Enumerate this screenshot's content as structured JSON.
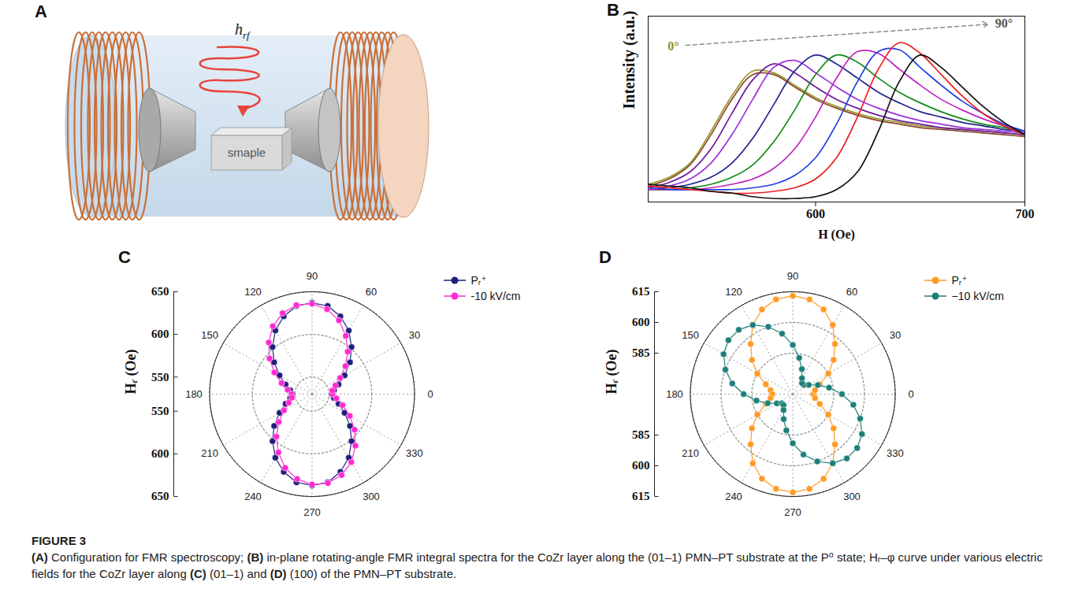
{
  "diagram": {
    "panel": "A",
    "field_label": {
      "base": "h",
      "subscript": "rf"
    },
    "sample_label": "smaple"
  },
  "chart_data": [
    {
      "panel": "B",
      "type": "line",
      "x_label": "H (Oe)",
      "y_label": "Intensity (a.u.)",
      "x": [
        520,
        530,
        540,
        550,
        560,
        570,
        580,
        590,
        600,
        610,
        620,
        630,
        640,
        650,
        660,
        670,
        680,
        690,
        700
      ],
      "xlim": [
        520,
        700
      ],
      "xticks": [
        600,
        700
      ],
      "ylim": [
        0,
        105
      ],
      "tick_labels": "x",
      "annotations": [
        {
          "text": "0°",
          "x": 532,
          "y": 88,
          "color": "#8f8f22"
        },
        {
          "text": "90°",
          "x": 690,
          "y": 101,
          "color": "#555555"
        }
      ],
      "series": [
        {
          "color": "#9a9a2e",
          "values": [
            10,
            14,
            22,
            40,
            60,
            74,
            73,
            66,
            59,
            54,
            50,
            47,
            45,
            43,
            42,
            41,
            40,
            39,
            38
          ]
        },
        {
          "color": "#8b4a2b",
          "values": [
            9,
            13,
            21,
            38,
            58,
            72,
            72,
            65,
            58,
            53,
            49,
            46,
            44,
            42,
            41,
            40,
            39,
            38,
            37
          ]
        },
        {
          "color": "#6a1b9a",
          "values": [
            8,
            11,
            17,
            30,
            50,
            69,
            78,
            73,
            65,
            58,
            53,
            49,
            46,
            44,
            42,
            41,
            40,
            39,
            38
          ]
        },
        {
          "color": "#9b30e0",
          "values": [
            7,
            9,
            13,
            22,
            38,
            58,
            76,
            80,
            73,
            65,
            58,
            53,
            49,
            46,
            44,
            42,
            41,
            40,
            39
          ]
        },
        {
          "color": "#23238f",
          "values": [
            7,
            8,
            10,
            14,
            22,
            36,
            55,
            74,
            83,
            78,
            70,
            62,
            56,
            51,
            48,
            45,
            43,
            41,
            40
          ]
        },
        {
          "color": "#138a13",
          "values": [
            7,
            7,
            8,
            10,
            14,
            21,
            34,
            52,
            72,
            83,
            79,
            70,
            62,
            56,
            51,
            47,
            44,
            42,
            40
          ]
        },
        {
          "color": "#c023c0",
          "values": [
            7,
            7,
            7,
            8,
            10,
            13,
            19,
            30,
            48,
            70,
            85,
            84,
            75,
            66,
            58,
            52,
            47,
            43,
            40
          ]
        },
        {
          "color": "#1f3fe0",
          "values": [
            8,
            7,
            7,
            7,
            7,
            8,
            10,
            15,
            25,
            44,
            68,
            85,
            86,
            76,
            66,
            57,
            50,
            44,
            40
          ]
        },
        {
          "color": "#ee1c1c",
          "values": [
            9,
            8,
            7,
            6,
            5,
            5,
            6,
            8,
            13,
            25,
            48,
            75,
            90,
            84,
            72,
            60,
            50,
            43,
            38
          ]
        },
        {
          "color": "#111111",
          "values": [
            10,
            9,
            8,
            6,
            5,
            3,
            2,
            2,
            3,
            7,
            17,
            40,
            68,
            83,
            76,
            65,
            54,
            45,
            38
          ]
        }
      ]
    },
    {
      "panel": "C",
      "type": "polar",
      "y_label": "Hᵣ (Oe)",
      "x": [
        0,
        10,
        20,
        30,
        40,
        50,
        60,
        70,
        80,
        90,
        100,
        110,
        120,
        130,
        140,
        150,
        160,
        170,
        180,
        190,
        200,
        210,
        220,
        230,
        240,
        250,
        260,
        270,
        280,
        290,
        300,
        310,
        320,
        330,
        340,
        350
      ],
      "xlim": [
        0,
        360
      ],
      "xticks": [
        0,
        30,
        60,
        90,
        120,
        150,
        180,
        210,
        240,
        270,
        300,
        330
      ],
      "ylim": [
        530,
        650
      ],
      "yticks": [
        550,
        600,
        650
      ],
      "grid": true,
      "legend": "top-right",
      "marker": "circle",
      "series": [
        {
          "name": "Pᵣ⁺",
          "color": "#1e1e7a",
          "values": [
            553,
            556,
            563,
            574,
            588,
            602,
            616,
            627,
            635,
            637,
            635,
            627,
            616,
            602,
            588,
            574,
            563,
            556,
            553,
            556,
            563,
            574,
            588,
            602,
            616,
            627,
            635,
            637,
            635,
            627,
            616,
            602,
            588,
            574,
            563,
            556
          ]
        },
        {
          "name": "-10 kV/cm",
          "color": "#ff2ad4",
          "values": [
            554,
            554,
            559,
            568,
            581,
            595,
            609,
            622,
            631,
            636,
            636,
            631,
            622,
            609,
            595,
            581,
            568,
            559,
            554,
            554,
            559,
            568,
            581,
            595,
            609,
            622,
            631,
            636,
            636,
            631,
            622,
            609,
            595,
            581,
            568,
            559
          ]
        }
      ]
    },
    {
      "panel": "D",
      "type": "polar",
      "y_label": "Hᵣ (Oe)",
      "x": [
        0,
        10,
        20,
        30,
        40,
        50,
        60,
        70,
        80,
        90,
        100,
        110,
        120,
        130,
        140,
        150,
        160,
        170,
        180,
        190,
        200,
        210,
        220,
        230,
        240,
        250,
        260,
        270,
        280,
        290,
        300,
        310,
        320,
        330,
        340,
        350
      ],
      "xlim": [
        0,
        360
      ],
      "xticks": [
        0,
        30,
        60,
        90,
        120,
        150,
        180,
        210,
        240,
        270,
        300,
        330
      ],
      "ylim": [
        565,
        615
      ],
      "yticks": [
        585,
        600,
        615
      ],
      "grid": true,
      "legend": "top-right",
      "marker": "circle",
      "series": [
        {
          "name": "Pᵣ⁺",
          "color": "#ff9a22",
          "values": [
            575,
            576,
            579,
            585,
            591,
            597,
            604,
            609,
            612,
            613,
            612,
            609,
            604,
            597,
            591,
            585,
            579,
            576,
            575,
            576,
            579,
            585,
            591,
            597,
            604,
            609,
            612,
            613,
            612,
            609,
            604,
            597,
            591,
            585,
            579,
            576
          ]
        },
        {
          "name": "−10 kV/cm",
          "color": "#1e7f7a",
          "values": [
            589,
            583,
            578,
            574,
            572,
            572,
            574,
            578,
            583,
            589,
            595,
            600,
            604,
            606,
            606,
            604,
            600,
            595,
            589,
            583,
            578,
            574,
            572,
            572,
            574,
            578,
            583,
            589,
            595,
            600,
            604,
            606,
            606,
            604,
            600,
            595
          ]
        }
      ]
    }
  ],
  "caption": {
    "label": "FIGURE 3",
    "parts": [
      {
        "bold": "(A)",
        "text": " Configuration for FMR spectroscopy; "
      },
      {
        "bold": "(B)",
        "text": " in-plane rotating-angle FMR integral spectra for the CoZr layer along the (01–1) PMN–PT substrate at the P⁰ state; Hᵣ–φ curve under various electric fields for the CoZr layer along "
      },
      {
        "bold": "(C)",
        "text": " (01–1) and "
      },
      {
        "bold": "(D)",
        "text": " (100) of the PMN–PT substrate."
      }
    ]
  }
}
